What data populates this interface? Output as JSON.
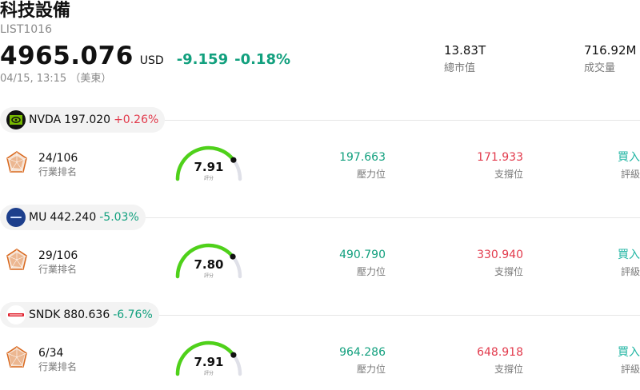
{
  "header": {
    "title": "科技設備",
    "code": "LIST1016",
    "price": "4965.076",
    "currency": "USD",
    "change": "-9.159",
    "change_pct": "-0.18%",
    "time": "04/15, 13:15 （美東）",
    "market_cap": {
      "value": "13.83T",
      "label": "總市值"
    },
    "volume": {
      "value": "716.92M",
      "label": "成交量"
    }
  },
  "stocks": [
    {
      "symbol": "NVDA",
      "price": "197.020",
      "change_pct": "+0.26%",
      "direction": "up",
      "logo_icon": "nvidia-logo",
      "rank": "24/106",
      "rank_label": "行業排名",
      "score": "7.91",
      "score_level": 0.791,
      "score_label": "評分",
      "resistance": "197.663",
      "resistance_label": "壓力位",
      "support": "171.933",
      "support_label": "支撐位",
      "rating": "買入",
      "rating_label": "評級"
    },
    {
      "symbol": "MU",
      "price": "442.240",
      "change_pct": "-5.03%",
      "direction": "down",
      "logo_icon": "micron-logo",
      "rank": "29/106",
      "rank_label": "行業排名",
      "score": "7.80",
      "score_level": 0.78,
      "score_label": "評分",
      "resistance": "490.790",
      "resistance_label": "壓力位",
      "support": "330.940",
      "support_label": "支撐位",
      "rating": "買入",
      "rating_label": "評級"
    },
    {
      "symbol": "SNDK",
      "price": "880.636",
      "change_pct": "-6.76%",
      "direction": "down",
      "logo_icon": "sandisk-logo",
      "rank": "6/34",
      "rank_label": "行業排名",
      "score": "7.91",
      "score_level": 0.791,
      "score_label": "評分",
      "resistance": "964.286",
      "resistance_label": "壓力位",
      "support": "648.918",
      "support_label": "支撐位",
      "rating": "買入",
      "rating_label": "評級"
    }
  ],
  "colors": {
    "up": "#e23a4c",
    "down": "#12a07e",
    "rating": "#21b5a3",
    "gauge": "#4fd11a",
    "gauge_track": "#dfe0e8",
    "radar": "#d9691f"
  }
}
